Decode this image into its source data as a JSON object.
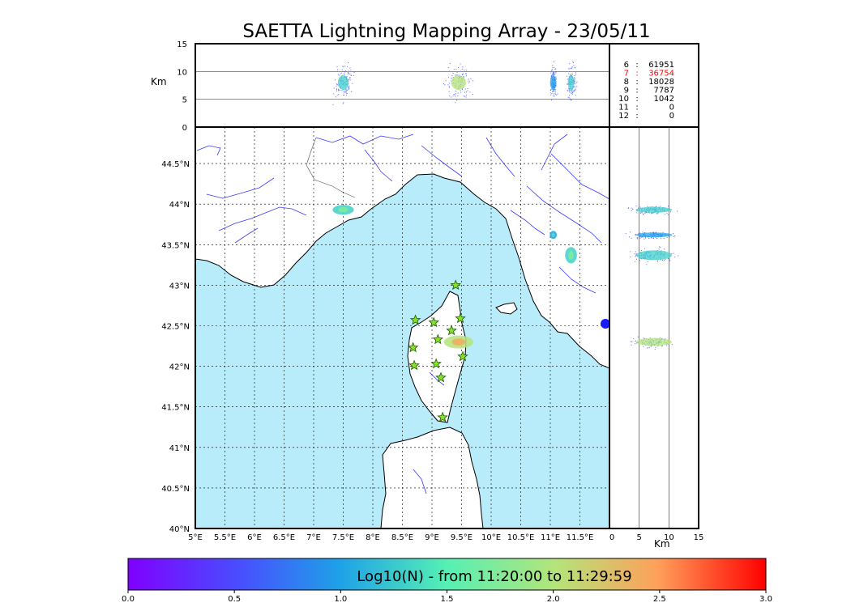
{
  "chart_data": {
    "type": "scatter",
    "title": "SAETTA Lightning Mapping Array - 23/05/11",
    "map": {
      "lon_ticks": [
        "5°E",
        "5.5°E",
        "6°E",
        "6.5°E",
        "7°E",
        "7.5°E",
        "8°E",
        "8.5°E",
        "9°E",
        "9.5°E",
        "10°E",
        "10.5°E",
        "11°E",
        "11.5°E"
      ],
      "lat_ticks": [
        "40°N",
        "40.5°N",
        "41°N",
        "41.5°N",
        "42°N",
        "42.5°N",
        "43°N",
        "43.5°N",
        "44°N",
        "44.5°N"
      ],
      "xlim": [
        5,
        12
      ],
      "ylim": [
        40,
        44.95
      ],
      "stations": [
        {
          "lon": 9.4,
          "lat": 43.0
        },
        {
          "lon": 8.72,
          "lat": 42.57
        },
        {
          "lon": 9.03,
          "lat": 42.54
        },
        {
          "lon": 9.48,
          "lat": 42.59
        },
        {
          "lon": 9.33,
          "lat": 42.44
        },
        {
          "lon": 9.1,
          "lat": 42.33
        },
        {
          "lon": 8.68,
          "lat": 42.23
        },
        {
          "lon": 9.52,
          "lat": 42.12
        },
        {
          "lon": 9.07,
          "lat": 42.03
        },
        {
          "lon": 8.7,
          "lat": 42.01
        },
        {
          "lon": 9.15,
          "lat": 41.86
        },
        {
          "lon": 9.18,
          "lat": 41.37
        }
      ],
      "clusters": [
        {
          "lon": 7.5,
          "lat": 43.93,
          "rx": 0.18,
          "ry": 0.06,
          "density": 1.3
        },
        {
          "lon": 9.45,
          "lat": 42.3,
          "rx": 0.25,
          "ry": 0.08,
          "density": 2.0
        },
        {
          "lon": 11.35,
          "lat": 43.37,
          "rx": 0.1,
          "ry": 0.1,
          "density": 1.3
        },
        {
          "lon": 11.05,
          "lat": 43.62,
          "rx": 0.06,
          "ry": 0.05,
          "density": 1.0
        }
      ]
    },
    "top_panel": {
      "ylabel": "Km",
      "y_ticks": [
        "0",
        "5",
        "10",
        "15"
      ],
      "ylim": [
        0,
        15
      ],
      "gridlines_km": [
        5,
        10
      ]
    },
    "side_panel": {
      "xlabel": "Km",
      "x_ticks": [
        "0",
        "5",
        "10",
        "15"
      ],
      "xlim": [
        0,
        15
      ],
      "gridlines_km": [
        5,
        10
      ]
    },
    "station_counts": [
      {
        "station": "6",
        "count": "61951",
        "color": "#000000"
      },
      {
        "station": "7",
        "count": "36754",
        "color": "#ff0000"
      },
      {
        "station": "8",
        "count": "18028",
        "color": "#000000"
      },
      {
        "station": "9",
        "count": "7787",
        "color": "#000000"
      },
      {
        "station": "10",
        "count": "1042",
        "color": "#000000"
      },
      {
        "station": "11",
        "count": "0",
        "color": "#000000"
      },
      {
        "station": "12",
        "count": "0",
        "color": "#000000"
      }
    ],
    "colorbar": {
      "label": "Log10(N) - from 11:20:00 to 11:29:59",
      "ticks": [
        "0.0",
        "0.5",
        "1.0",
        "1.5",
        "2.0",
        "2.5",
        "3.0"
      ],
      "range": [
        0,
        3
      ]
    },
    "colors": {
      "sea": "#b8ecfb",
      "rivers": "#3a3aff",
      "station_marker": "#88e02a",
      "grid": "#000000"
    }
  }
}
